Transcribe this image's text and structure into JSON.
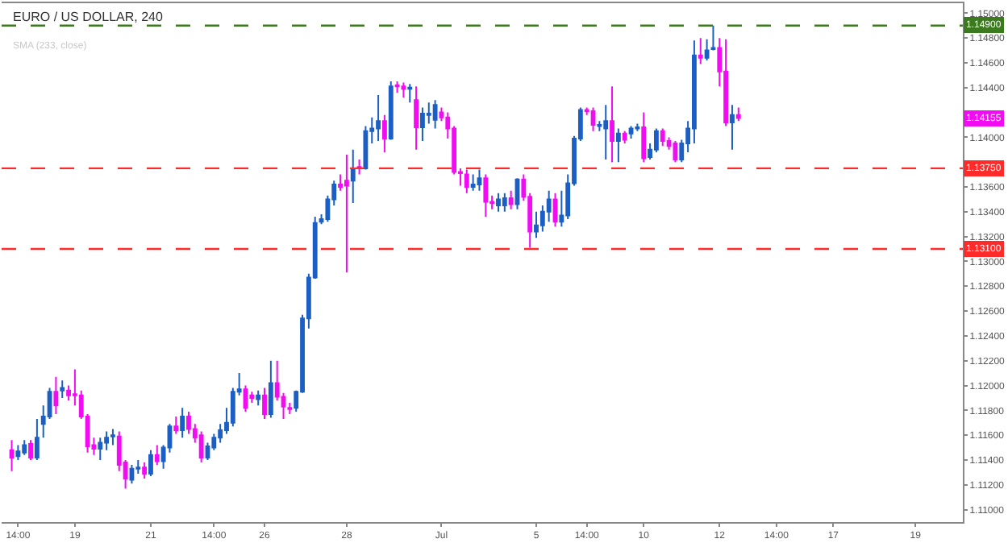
{
  "chart_data": {
    "type": "candlestick",
    "title": "EURO / US DOLLAR, 240",
    "annotations": [
      "SMA (233, close)",
      {
        "text": "1.14155",
        "y": 1.14155
      }
    ],
    "categories": [
      null,
      "14:00",
      null,
      null,
      null,
      null,
      null,
      null,
      null,
      null,
      "19",
      null,
      null,
      null,
      null,
      null,
      null,
      null,
      null,
      null,
      null,
      null,
      "21",
      null,
      null,
      null,
      null,
      null,
      null,
      null,
      null,
      null,
      "14:00",
      null,
      null,
      null,
      null,
      null,
      null,
      null,
      "26",
      null,
      null,
      null,
      null,
      null,
      null,
      null,
      null,
      null,
      null,
      null,
      null,
      "28",
      null,
      null,
      null,
      null,
      null,
      null,
      null,
      null,
      null,
      null,
      null,
      null,
      null,
      null,
      "Jul",
      null,
      null,
      null,
      null,
      null,
      null,
      null,
      null,
      null,
      null,
      null,
      null,
      null,
      null,
      "5",
      null,
      null,
      null,
      null,
      null,
      null,
      null,
      "14:00",
      null,
      null,
      null,
      null,
      null,
      null,
      null,
      null,
      "10",
      null,
      null,
      null,
      null,
      null,
      null,
      null,
      null,
      null,
      null,
      null,
      "12",
      null,
      null,
      null,
      null,
      null,
      null,
      null,
      null,
      "14:00",
      null,
      null,
      null,
      null,
      null,
      null,
      null,
      null,
      "17",
      null,
      null,
      null,
      null,
      null,
      null,
      null,
      null,
      null,
      null,
      null,
      null,
      "19",
      null,
      null,
      null,
      null,
      null,
      null,
      null
    ],
    "ohlc": [
      [
        1.1148,
        1.1156,
        1.1131,
        1.1142
      ],
      [
        1.1143,
        1.1152,
        1.114,
        1.1147
      ],
      [
        1.1146,
        1.1156,
        1.1144,
        1.1152
      ],
      [
        1.1153,
        1.1156,
        1.114,
        1.1142
      ],
      [
        1.1142,
        1.1173,
        1.114,
        1.1158
      ],
      [
        1.1169,
        1.1184,
        1.1158,
        1.1175
      ],
      [
        1.1175,
        1.1198,
        1.1173,
        1.1195
      ],
      [
        1.1195,
        1.1207,
        1.1177,
        1.1184
      ],
      [
        1.1196,
        1.1204,
        1.119,
        1.1198
      ],
      [
        1.1196,
        1.12,
        1.1188,
        1.1192
      ],
      [
        1.1193,
        1.1213,
        1.1184,
        1.1192
      ],
      [
        1.1192,
        1.1196,
        1.1173,
        1.1175
      ],
      [
        1.1175,
        1.1177,
        1.1146,
        1.1151
      ],
      [
        1.1152,
        1.1158,
        1.1144,
        1.1149
      ],
      [
        1.1149,
        1.1158,
        1.114,
        1.1154
      ],
      [
        1.1154,
        1.1163,
        1.1148,
        1.1158
      ],
      [
        1.1159,
        1.1165,
        1.1152,
        1.116
      ],
      [
        1.1159,
        1.1163,
        1.1131,
        1.1136
      ],
      [
        1.1138,
        1.114,
        1.1117,
        1.1125
      ],
      [
        1.1124,
        1.1136,
        1.1121,
        1.1133
      ],
      [
        1.1133,
        1.114,
        1.1129,
        1.1134
      ],
      [
        1.1134,
        1.1138,
        1.1125,
        1.1129
      ],
      [
        1.1129,
        1.1148,
        1.1127,
        1.1144
      ],
      [
        1.1144,
        1.1152,
        1.1136,
        1.1139
      ],
      [
        1.1139,
        1.1152,
        1.1133,
        1.115
      ],
      [
        1.115,
        1.1169,
        1.1146,
        1.1167
      ],
      [
        1.1167,
        1.1175,
        1.1161,
        1.1164
      ],
      [
        1.1164,
        1.1182,
        1.1158,
        1.1175
      ],
      [
        1.1175,
        1.1179,
        1.1161,
        1.1165
      ],
      [
        1.1165,
        1.1169,
        1.1154,
        1.1158
      ],
      [
        1.116,
        1.1163,
        1.1138,
        1.1142
      ],
      [
        1.1142,
        1.1154,
        1.114,
        1.1151
      ],
      [
        1.115,
        1.1161,
        1.1148,
        1.1158
      ],
      [
        1.1158,
        1.1169,
        1.1154,
        1.1164
      ],
      [
        1.1164,
        1.1182,
        1.1161,
        1.117
      ],
      [
        1.117,
        1.1198,
        1.1167,
        1.1195
      ],
      [
        1.1195,
        1.121,
        1.1192,
        1.1197
      ],
      [
        1.1197,
        1.12,
        1.1179,
        1.1182
      ],
      [
        1.1192,
        1.1195,
        1.1186,
        1.119
      ],
      [
        1.1189,
        1.1196,
        1.1184,
        1.1192
      ],
      [
        1.1192,
        1.1198,
        1.1173,
        1.1177
      ],
      [
        1.1177,
        1.122,
        1.1174,
        1.1202
      ],
      [
        1.1202,
        1.122,
        1.1188,
        1.1191
      ],
      [
        1.1191,
        1.1194,
        1.1173,
        1.1183
      ],
      [
        1.1182,
        1.1186,
        1.1177,
        1.1181
      ],
      [
        1.1182,
        1.1196,
        1.1179,
        1.1195
      ],
      [
        1.1195,
        1.1257,
        1.1194,
        1.1254
      ],
      [
        1.1254,
        1.129,
        1.1246,
        1.1287
      ],
      [
        1.1287,
        1.1336,
        1.1286,
        1.1331
      ],
      [
        1.1332,
        1.1338,
        1.133,
        1.1334
      ],
      [
        1.1334,
        1.1353,
        1.1332,
        1.135
      ],
      [
        1.135,
        1.1365,
        1.1345,
        1.1362
      ],
      [
        1.1362,
        1.137,
        1.1357,
        1.136
      ],
      [
        1.1365,
        1.1386,
        1.1291,
        1.1361
      ],
      [
        1.1365,
        1.139,
        1.1347,
        1.1375
      ],
      [
        1.1376,
        1.1382,
        1.137,
        1.1375
      ],
      [
        1.1375,
        1.1409,
        1.1374,
        1.1405
      ],
      [
        1.1405,
        1.1416,
        1.1395,
        1.1407
      ],
      [
        1.1407,
        1.1434,
        1.1397,
        1.1413
      ],
      [
        1.1413,
        1.1418,
        1.1388,
        1.1399
      ],
      [
        1.1399,
        1.1445,
        1.1398,
        1.1441
      ],
      [
        1.1442,
        1.1445,
        1.1436,
        1.1441
      ],
      [
        1.1441,
        1.1444,
        1.1432,
        1.1439
      ],
      [
        1.1439,
        1.1443,
        1.1428,
        1.144
      ],
      [
        1.143,
        1.1441,
        1.139,
        1.1408
      ],
      [
        1.1408,
        1.1424,
        1.1397,
        1.1419
      ],
      [
        1.1418,
        1.1428,
        1.1411,
        1.1419
      ],
      [
        1.1414,
        1.143,
        1.1407,
        1.1426
      ],
      [
        1.142,
        1.1424,
        1.1413,
        1.1416
      ],
      [
        1.1416,
        1.142,
        1.1399,
        1.1407
      ],
      [
        1.1407,
        1.1409,
        1.137,
        1.1372
      ],
      [
        1.1372,
        1.1375,
        1.1361,
        1.1371
      ],
      [
        1.137,
        1.1374,
        1.1355,
        1.136
      ],
      [
        1.136,
        1.137,
        1.1357,
        1.1362
      ],
      [
        1.1362,
        1.1374,
        1.1357,
        1.1367
      ],
      [
        1.1367,
        1.137,
        1.1336,
        1.1348
      ],
      [
        1.1348,
        1.1353,
        1.1342,
        1.1347
      ],
      [
        1.1345,
        1.1355,
        1.134,
        1.135
      ],
      [
        1.1345,
        1.1355,
        1.134,
        1.1351
      ],
      [
        1.1351,
        1.1357,
        1.1342,
        1.1346
      ],
      [
        1.1346,
        1.1367,
        1.1342,
        1.1366
      ],
      [
        1.1366,
        1.137,
        1.1349,
        1.1352
      ],
      [
        1.1352,
        1.1355,
        1.1311,
        1.1324
      ],
      [
        1.1324,
        1.134,
        1.1319,
        1.1329
      ],
      [
        1.1329,
        1.1345,
        1.1324,
        1.134
      ],
      [
        1.134,
        1.1357,
        1.1332,
        1.135
      ],
      [
        1.135,
        1.1355,
        1.1328,
        1.1332
      ],
      [
        1.1332,
        1.1357,
        1.1328,
        1.1337
      ],
      [
        1.1337,
        1.137,
        1.1334,
        1.1363
      ],
      [
        1.1363,
        1.1401,
        1.1361,
        1.1399
      ],
      [
        1.1399,
        1.1424,
        1.1397,
        1.1422
      ],
      [
        1.1422,
        1.1424,
        1.1418,
        1.1421
      ],
      [
        1.1421,
        1.1424,
        1.1405,
        1.141
      ],
      [
        1.1409,
        1.1413,
        1.1405,
        1.141
      ],
      [
        1.1407,
        1.1426,
        1.1382,
        1.1413
      ],
      [
        1.1413,
        1.1441,
        1.138,
        1.1397
      ],
      [
        1.1397,
        1.1407,
        1.138,
        1.1403
      ],
      [
        1.1403,
        1.1405,
        1.1395,
        1.1398
      ],
      [
        1.1403,
        1.1409,
        1.1399,
        1.1407
      ],
      [
        1.1407,
        1.1411,
        1.1405,
        1.1408
      ],
      [
        1.1408,
        1.142,
        1.138,
        1.1383
      ],
      [
        1.1384,
        1.1395,
        1.1382,
        1.139
      ],
      [
        1.139,
        1.1407,
        1.1388,
        1.1405
      ],
      [
        1.1405,
        1.1407,
        1.1393,
        1.1397
      ],
      [
        1.1397,
        1.14,
        1.139,
        1.1393
      ],
      [
        1.1395,
        1.1397,
        1.138,
        1.1382
      ],
      [
        1.1382,
        1.1398,
        1.138,
        1.1395
      ],
      [
        1.1395,
        1.1413,
        1.1388,
        1.1407
      ],
      [
        1.1407,
        1.1478,
        1.1395,
        1.1466
      ],
      [
        1.1466,
        1.148,
        1.1459,
        1.1464
      ],
      [
        1.1464,
        1.1479,
        1.1462,
        1.147
      ],
      [
        1.1471,
        1.149,
        1.147,
        1.1472
      ],
      [
        1.1472,
        1.148,
        1.1441,
        1.1453
      ],
      [
        1.1453,
        1.1479,
        1.1409,
        1.1412
      ],
      [
        1.1412,
        1.1426,
        1.139,
        1.1418
      ],
      [
        1.1418,
        1.1424,
        1.1413,
        1.14155
      ],
      null,
      null,
      null,
      null,
      null,
      null,
      null,
      null,
      null,
      null,
      null,
      null,
      null,
      null,
      null,
      null,
      null,
      null,
      null,
      null,
      null,
      null,
      null,
      null,
      null,
      null,
      null,
      null,
      null,
      null,
      null,
      null,
      null,
      null,
      null
    ],
    "colors": [
      "#f20cf2",
      "#1c5fc4",
      "#1c5fc4",
      "#f20cf2",
      "#1c5fc4",
      "#1c5fc4",
      "#1c5fc4",
      "#f20cf2",
      "#1c5fc4",
      "#f20cf2",
      "#f20cf2",
      "#f20cf2",
      "#f20cf2",
      "#f20cf2",
      "#1c5fc4",
      "#1c5fc4",
      "#1c5fc4",
      "#f20cf2",
      "#f20cf2",
      "#1c5fc4",
      "#1c5fc4",
      "#f20cf2",
      "#1c5fc4",
      "#f20cf2",
      "#1c5fc4",
      "#1c5fc4",
      "#f20cf2",
      "#1c5fc4",
      "#f20cf2",
      "#f20cf2",
      "#f20cf2",
      "#1c5fc4",
      "#1c5fc4",
      "#1c5fc4",
      "#1c5fc4",
      "#1c5fc4",
      "#1c5fc4",
      "#f20cf2",
      "#f20cf2",
      "#1c5fc4",
      "#f20cf2",
      "#1c5fc4",
      "#f20cf2",
      "#f20cf2",
      "#f20cf2",
      "#1c5fc4",
      "#1c5fc4",
      "#1c5fc4",
      "#1c5fc4",
      "#1c5fc4",
      "#1c5fc4",
      "#1c5fc4",
      "#f20cf2",
      "#f20cf2",
      "#1c5fc4",
      "#f20cf2",
      "#1c5fc4",
      "#1c5fc4",
      "#1c5fc4",
      "#f20cf2",
      "#1c5fc4",
      "#f20cf2",
      "#f20cf2",
      "#1c5fc4",
      "#f20cf2",
      "#1c5fc4",
      "#1c5fc4",
      "#1c5fc4",
      "#f20cf2",
      "#f20cf2",
      "#f20cf2",
      "#f20cf2",
      "#f20cf2",
      "#1c5fc4",
      "#1c5fc4",
      "#f20cf2",
      "#f20cf2",
      "#1c5fc4",
      "#1c5fc4",
      "#f20cf2",
      "#1c5fc4",
      "#f20cf2",
      "#f20cf2",
      "#1c5fc4",
      "#1c5fc4",
      "#1c5fc4",
      "#f20cf2",
      "#1c5fc4",
      "#1c5fc4",
      "#1c5fc4",
      "#1c5fc4",
      "#f20cf2",
      "#f20cf2",
      "#1c5fc4",
      "#1c5fc4",
      "#f20cf2",
      "#1c5fc4",
      "#f20cf2",
      "#1c5fc4",
      "#1c5fc4",
      "#f20cf2",
      "#1c5fc4",
      "#1c5fc4",
      "#f20cf2",
      "#f20cf2",
      "#f20cf2",
      "#1c5fc4",
      "#1c5fc4",
      "#1c5fc4",
      "#f20cf2",
      "#1c5fc4",
      "#1c5fc4",
      "#f20cf2",
      "#f20cf2",
      "#1c5fc4",
      "#f20cf2",
      null,
      null,
      null,
      null,
      null,
      null,
      null,
      null,
      null,
      null,
      null,
      null,
      null,
      null,
      null,
      null,
      null,
      null,
      null,
      null,
      null,
      null,
      null,
      null,
      null,
      null,
      null,
      null,
      null,
      null,
      null,
      null,
      null,
      null,
      null
    ],
    "ylim": [
      1.109,
      1.1508
    ],
    "yticks": [
      {
        "value": 1.11,
        "label": "1.11000"
      },
      {
        "value": 1.112,
        "label": "1.11200"
      },
      {
        "value": 1.114,
        "label": "1.11400"
      },
      {
        "value": 1.116,
        "label": "1.11600"
      },
      {
        "value": 1.118,
        "label": "1.11800"
      },
      {
        "value": 1.12,
        "label": "1.12000"
      },
      {
        "value": 1.122,
        "label": "1.12200"
      },
      {
        "value": 1.124,
        "label": "1.12400"
      },
      {
        "value": 1.126,
        "label": "1.12600"
      },
      {
        "value": 1.128,
        "label": "1.12800"
      },
      {
        "value": 1.13,
        "label": "1.13000"
      },
      {
        "value": 1.132,
        "label": "1.13200"
      },
      {
        "value": 1.134,
        "label": "1.13400"
      },
      {
        "value": 1.136,
        "label": "1.13600"
      },
      {
        "value": 1.138,
        "label": null
      },
      {
        "value": 1.14,
        "label": "1.14000"
      },
      {
        "value": 1.142,
        "label": null
      },
      {
        "value": 1.144,
        "label": "1.14400"
      },
      {
        "value": 1.146,
        "label": "1.14600"
      },
      {
        "value": 1.148,
        "label": "1.14800"
      },
      {
        "value": 1.15,
        "label": "1.15000"
      }
    ],
    "ref_lines": [
      {
        "axis": "y",
        "value": 1.149,
        "label": "1.14900",
        "color": "#3b7a1e",
        "line_style": "dashed"
      },
      {
        "axis": "y",
        "value": 1.1375,
        "label": "1.13750",
        "color": "#ff2a2a",
        "line_style": "dashed"
      },
      {
        "axis": "y",
        "value": 1.131,
        "label": "1.13100",
        "color": "#ff2a2a",
        "line_style": "dashed"
      }
    ],
    "grid": false
  }
}
